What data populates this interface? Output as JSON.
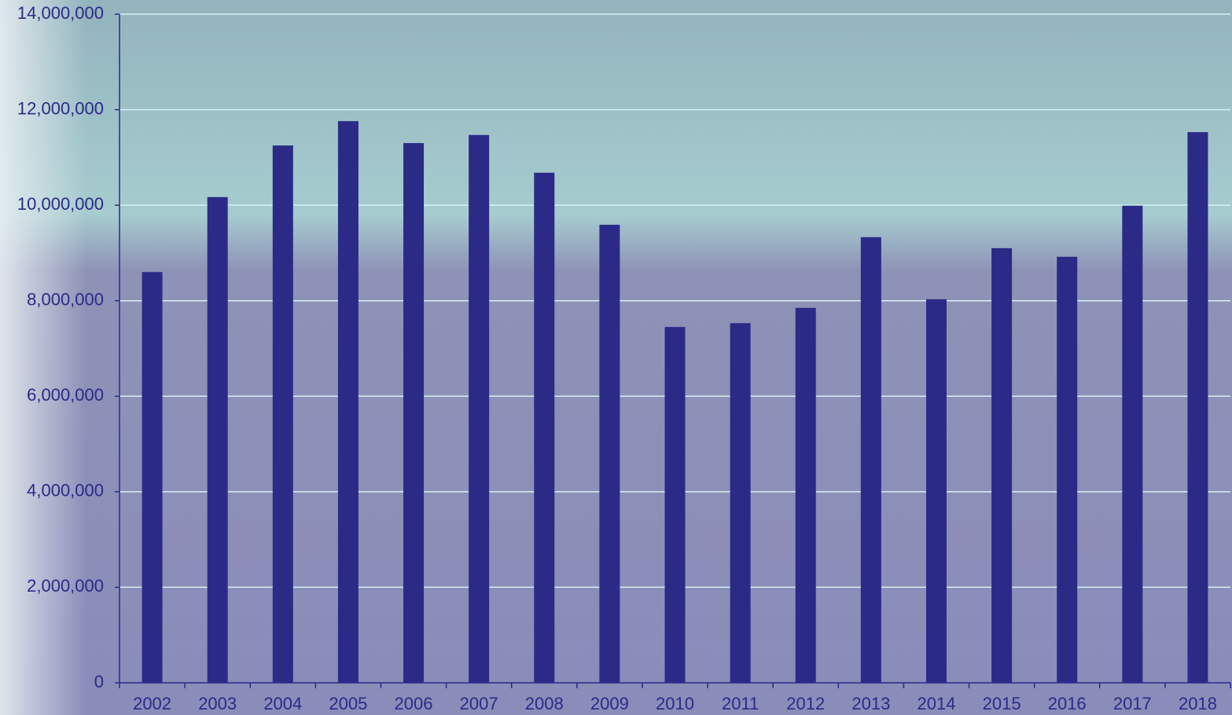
{
  "chart_data": {
    "type": "bar",
    "categories": [
      "2002",
      "2003",
      "2004",
      "2005",
      "2006",
      "2007",
      "2008",
      "2009",
      "2010",
      "2011",
      "2012",
      "2013",
      "2014",
      "2015",
      "2016",
      "2017",
      "2018"
    ],
    "values": [
      8600000,
      10170000,
      11250000,
      11760000,
      11300000,
      11470000,
      10680000,
      9590000,
      7450000,
      7530000,
      7850000,
      9330000,
      8030000,
      9100000,
      8920000,
      9990000,
      11530000
    ],
    "color": "#2b2a87",
    "ylim": [
      0,
      14000000
    ],
    "yticks": [
      0,
      {
        "value": 2000000,
        "label": "2,000,000"
      },
      {
        "value": 4000000,
        "label": "4,000,000"
      },
      {
        "value": 6000000,
        "label": "6,000,000"
      },
      {
        "value": 8000000,
        "label": "8,000,000"
      },
      {
        "value": 10000000,
        "label": "10,000,000"
      },
      {
        "value": 12000000,
        "label": "12,000,000"
      },
      {
        "value": 14000000,
        "label": "14,000,000"
      }
    ],
    "grid": true
  }
}
